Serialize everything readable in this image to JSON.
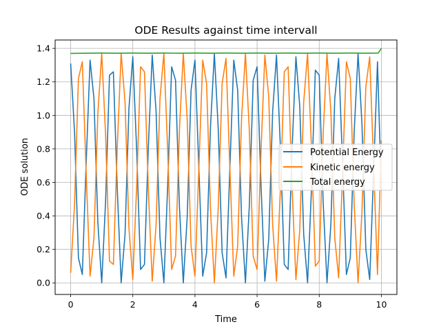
{
  "chart_data": {
    "type": "line",
    "title": "ODE Results against time intervall",
    "xlabel": "Time",
    "ylabel": "ODE solution",
    "xlim": [
      -0.5,
      10.5
    ],
    "ylim": [
      -0.069,
      1.45
    ],
    "xticks": [
      0,
      2,
      4,
      6,
      8,
      10
    ],
    "yticks": [
      0.0,
      0.2,
      0.4,
      0.6,
      0.8,
      1.0,
      1.2,
      1.4
    ],
    "xtick_labels": [
      "0",
      "2",
      "4",
      "6",
      "8",
      "10"
    ],
    "ytick_labels": [
      "0.0",
      "0.2",
      "0.4",
      "0.6",
      "0.8",
      "1.0",
      "1.2",
      "1.4"
    ],
    "grid": true,
    "legend_position": "center-right",
    "series": [
      {
        "name": "Potential Energy",
        "color": "#1f77b4",
        "x": [
          0.0,
          0.125,
          0.25,
          0.375,
          0.5,
          0.625,
          0.75,
          0.875,
          1.0,
          1.125,
          1.25,
          1.375,
          1.5,
          1.625,
          1.75,
          1.875,
          2.0,
          2.125,
          2.25,
          2.375,
          2.5,
          2.625,
          2.75,
          2.875,
          3.0,
          3.125,
          3.25,
          3.375,
          3.5,
          3.625,
          3.75,
          3.875,
          4.0,
          4.125,
          4.25,
          4.375,
          4.5,
          4.625,
          4.75,
          4.875,
          5.0,
          5.125,
          5.25,
          5.375,
          5.5,
          5.625,
          5.75,
          5.875,
          6.0,
          6.125,
          6.25,
          6.375,
          6.5,
          6.625,
          6.75,
          6.875,
          7.0,
          7.125,
          7.25,
          7.375,
          7.5,
          7.625,
          7.75,
          7.875,
          8.0,
          8.125,
          8.25,
          8.375,
          8.5,
          8.625,
          8.75,
          8.875,
          9.0,
          9.125,
          9.25,
          9.375,
          9.5,
          9.625,
          9.75,
          9.875,
          10.0
        ],
        "values": [
          1.31,
          0.9,
          0.15,
          0.05,
          0.72,
          1.33,
          1.1,
          0.36,
          0.0,
          0.49,
          1.24,
          1.26,
          0.56,
          0.0,
          0.29,
          1.04,
          1.35,
          0.79,
          0.08,
          0.11,
          0.81,
          1.36,
          1.02,
          0.27,
          0.0,
          0.59,
          1.29,
          1.21,
          0.46,
          0.0,
          0.39,
          1.15,
          1.33,
          0.69,
          0.04,
          0.18,
          0.93,
          1.37,
          0.92,
          0.18,
          0.03,
          0.69,
          1.33,
          1.15,
          0.39,
          0.0,
          0.46,
          1.21,
          1.29,
          0.59,
          0.01,
          0.26,
          1.02,
          1.36,
          0.81,
          0.11,
          0.08,
          0.79,
          1.35,
          1.05,
          0.29,
          0.0,
          0.56,
          1.27,
          1.24,
          0.49,
          0.0,
          0.35,
          1.1,
          1.34,
          0.72,
          0.05,
          0.15,
          0.9,
          1.37,
          0.95,
          0.2,
          0.02,
          0.66,
          1.32,
          0.55
        ]
      },
      {
        "name": "Kinetic energy",
        "color": "#ff7f0e",
        "x": [
          0.0,
          0.125,
          0.25,
          0.375,
          0.5,
          0.625,
          0.75,
          0.875,
          1.0,
          1.125,
          1.25,
          1.375,
          1.5,
          1.625,
          1.75,
          1.875,
          2.0,
          2.125,
          2.25,
          2.375,
          2.5,
          2.625,
          2.75,
          2.875,
          3.0,
          3.125,
          3.25,
          3.375,
          3.5,
          3.625,
          3.75,
          3.875,
          4.0,
          4.125,
          4.25,
          4.375,
          4.5,
          4.625,
          4.75,
          4.875,
          5.0,
          5.125,
          5.25,
          5.375,
          5.5,
          5.625,
          5.75,
          5.875,
          6.0,
          6.125,
          6.25,
          6.375,
          6.5,
          6.625,
          6.75,
          6.875,
          7.0,
          7.125,
          7.25,
          7.375,
          7.5,
          7.625,
          7.75,
          7.875,
          8.0,
          8.125,
          8.25,
          8.375,
          8.5,
          8.625,
          8.75,
          8.875,
          9.0,
          9.125,
          9.25,
          9.375,
          9.5,
          9.625,
          9.75,
          9.875,
          10.0
        ],
        "values": [
          0.06,
          0.47,
          1.22,
          1.32,
          0.65,
          0.04,
          0.27,
          1.01,
          1.37,
          0.88,
          0.13,
          0.11,
          0.81,
          1.37,
          1.08,
          0.33,
          0.02,
          0.58,
          1.29,
          1.26,
          0.56,
          0.01,
          0.35,
          1.1,
          1.37,
          0.78,
          0.08,
          0.16,
          0.91,
          1.37,
          0.98,
          0.22,
          0.04,
          0.68,
          1.33,
          1.19,
          0.44,
          0.0,
          0.45,
          1.19,
          1.34,
          0.68,
          0.04,
          0.22,
          0.98,
          1.37,
          0.91,
          0.16,
          0.08,
          0.78,
          1.36,
          1.11,
          0.35,
          0.01,
          0.56,
          1.26,
          1.29,
          0.58,
          0.02,
          0.32,
          1.08,
          1.37,
          0.81,
          0.1,
          0.13,
          0.88,
          1.37,
          1.02,
          0.27,
          0.03,
          0.65,
          1.32,
          1.22,
          0.47,
          0.0,
          0.42,
          1.17,
          1.35,
          0.71,
          0.05,
          0.85
        ]
      },
      {
        "name": "Total energy",
        "color": "#2ca02c",
        "x": [
          0.0,
          0.5,
          1.0,
          1.5,
          2.0,
          2.5,
          3.0,
          3.5,
          4.0,
          4.5,
          5.0,
          5.5,
          6.0,
          6.5,
          7.0,
          7.5,
          8.0,
          8.5,
          9.0,
          9.5,
          9.9,
          10.0
        ],
        "values": [
          1.37,
          1.371,
          1.372,
          1.371,
          1.372,
          1.371,
          1.372,
          1.371,
          1.372,
          1.371,
          1.372,
          1.371,
          1.372,
          1.371,
          1.372,
          1.371,
          1.372,
          1.371,
          1.372,
          1.371,
          1.372,
          1.4
        ]
      }
    ]
  }
}
